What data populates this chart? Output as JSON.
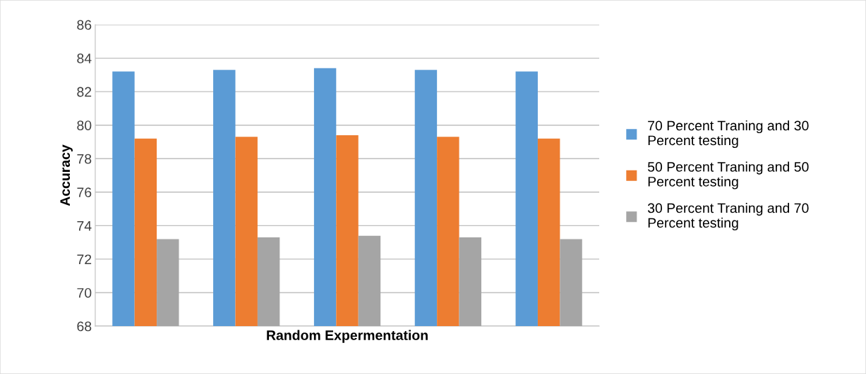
{
  "chart_data": {
    "type": "bar",
    "xlabel": "Random Expermentation",
    "ylabel": "Accuracy",
    "categories": [
      null,
      null,
      null,
      null,
      null
    ],
    "series": [
      {
        "name": "70 Percent Traning and 30\nPercent testing",
        "color": "#5b9bd5",
        "values": [
          83.2,
          83.3,
          83.4,
          83.3,
          83.2
        ]
      },
      {
        "name": "50 Percent Traning and 50\nPercent testing",
        "color": "#ed7d31",
        "values": [
          79.2,
          79.3,
          79.4,
          79.3,
          79.2
        ]
      },
      {
        "name": "30 Percent Traning and 70\nPercent testing",
        "color": "#a5a5a5",
        "values": [
          73.2,
          73.3,
          73.4,
          73.3,
          73.2
        ]
      }
    ],
    "ylim": [
      68,
      86
    ],
    "yticks": [
      68,
      70,
      72,
      74,
      76,
      78,
      80,
      82,
      84,
      86
    ],
    "grid": "y",
    "legend": "right",
    "tick_labels": "y"
  }
}
